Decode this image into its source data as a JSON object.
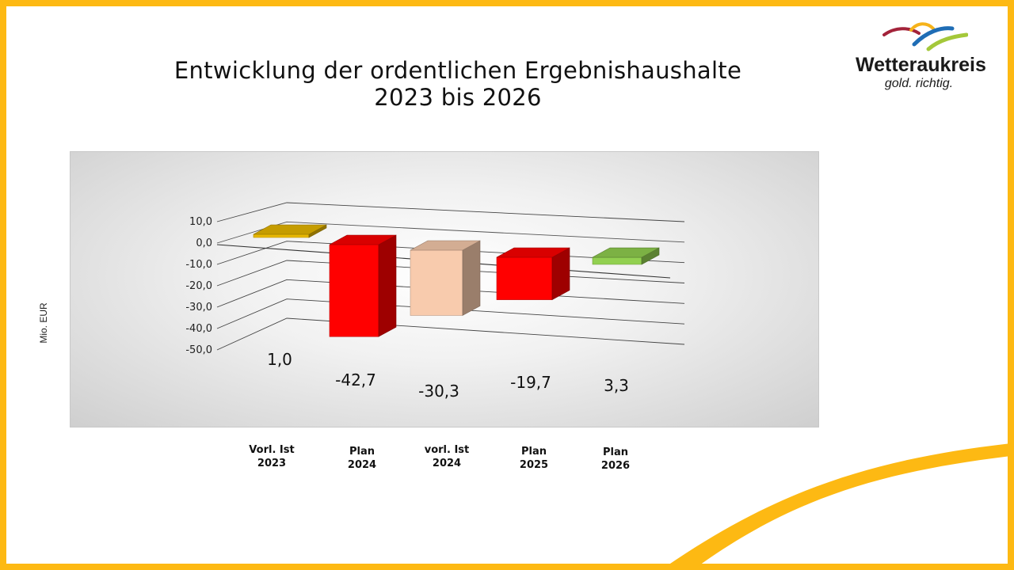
{
  "title_line1": "Entwicklung der ordentlichen Ergebnishaushalte",
  "title_line2": "2023 bis 2026",
  "logo": {
    "name": "Wetteraukreis",
    "tagline": "gold. richtig."
  },
  "colors": {
    "frame": "#FDB913",
    "swoosh_red": "#A3233A",
    "swoosh_gold": "#F6B31A",
    "swoosh_blue": "#1F6DB5",
    "swoosh_green": "#A4C83A"
  },
  "chart_data": {
    "type": "bar",
    "style": "3d-column",
    "ylabel": "Mio. EUR",
    "ylim": [
      -50,
      10
    ],
    "yticks": [
      "10,0",
      "0,0",
      "-10,0",
      "-20,0",
      "-30,0",
      "-40,0",
      "-50,0"
    ],
    "grid": true,
    "legend": "none",
    "categories": [
      {
        "line1": "Vorl. Ist",
        "line2": "2023"
      },
      {
        "line1": "Plan",
        "line2": "2024"
      },
      {
        "line1": "vorl. Ist",
        "line2": "2024"
      },
      {
        "line1": "Plan",
        "line2": "2025"
      },
      {
        "line1": "Plan",
        "line2": "2026"
      }
    ],
    "values": [
      1.0,
      -42.7,
      -30.3,
      -19.7,
      3.3
    ],
    "value_labels": [
      "1,0",
      "-42,7",
      "-30,3",
      "-19,7",
      "3,3"
    ],
    "bar_colors": [
      "#E8B800",
      "#FF0000",
      "#F8CBAD",
      "#FF0000",
      "#92D050"
    ]
  }
}
